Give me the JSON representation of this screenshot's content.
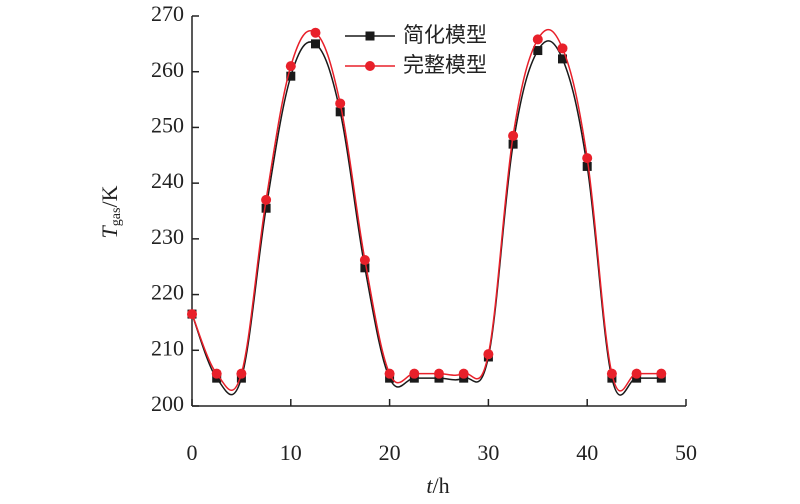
{
  "chart_data": {
    "type": "line",
    "x_label": {
      "symbol": "t",
      "unit": "/h"
    },
    "y_label": {
      "symbol": "T",
      "subscript": "gas",
      "unit": "/K"
    },
    "x": [
      0,
      2.5,
      5,
      7.5,
      10,
      12.5,
      15,
      17.5,
      20,
      22.5,
      25,
      27.5,
      30,
      32.5,
      35,
      37.5,
      40,
      42.5,
      45,
      47.5
    ],
    "series": [
      {
        "name": "简化模型",
        "color": "#1a1a1a",
        "marker": "square",
        "values": [
          216.5,
          205,
          205,
          235.5,
          259.2,
          265,
          252.8,
          224.8,
          205,
          205,
          205,
          205,
          208.8,
          247,
          263.8,
          262.3,
          243,
          205,
          205,
          205
        ]
      },
      {
        "name": "完整模型",
        "color": "#e8202a",
        "marker": "circle",
        "values": [
          216.5,
          205.8,
          205.8,
          237,
          261,
          267,
          254.3,
          226.2,
          205.8,
          205.8,
          205.8,
          205.8,
          209.3,
          248.5,
          265.8,
          264.2,
          244.5,
          205.8,
          205.8,
          205.8
        ]
      }
    ],
    "xlim": [
      0,
      50
    ],
    "xticks": [
      0,
      10,
      20,
      30,
      40,
      50
    ],
    "ylim": [
      200,
      270
    ],
    "yticks": [
      200,
      210,
      220,
      230,
      240,
      250,
      260,
      270
    ],
    "legend": "top",
    "grid": false
  }
}
